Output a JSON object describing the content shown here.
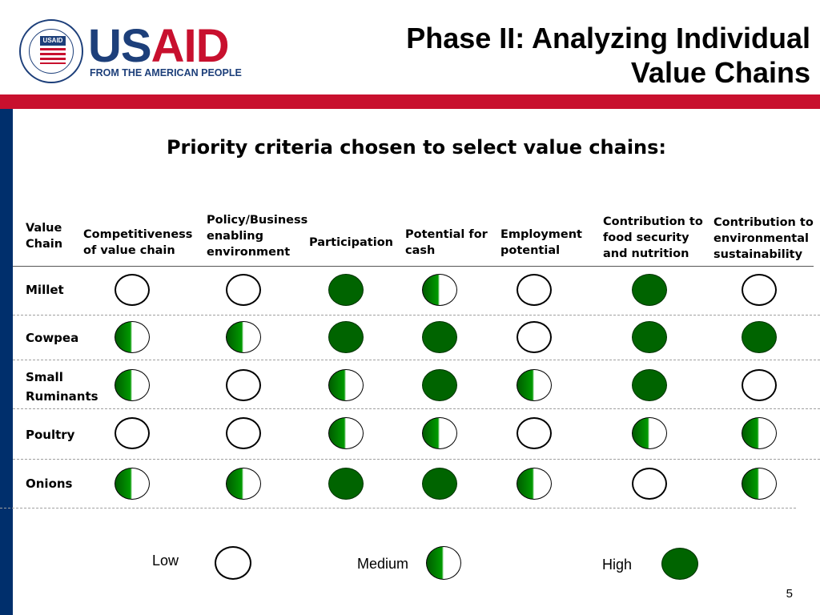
{
  "brand": {
    "seal_text": "USAID",
    "wordmark_us": "US",
    "wordmark_aid": "AID",
    "tagline": "FROM THE AMERICAN PEOPLE",
    "blue": "#1d3f7a",
    "red": "#c8102e"
  },
  "slide": {
    "title_line1": "Phase II: Analyzing Individual",
    "title_line2": "Value Chains",
    "subtitle": "Priority criteria chosen to select value chains:",
    "page_number": "5"
  },
  "table": {
    "headers": [
      "Value\nChain",
      "Competitiveness\nof value chain",
      "Policy/Business\nenabling\nenvironment",
      "Participation",
      "Potential for\ncash",
      "Employment\npotential",
      "Contribution to\nfood security\nand nutrition",
      "Contribution to\nenvironmental\nsustainability"
    ],
    "rows": [
      {
        "label": "Millet",
        "ratings": [
          "low",
          "low",
          "high",
          "medium",
          "low",
          "high",
          "low"
        ]
      },
      {
        "label": "Cowpea",
        "ratings": [
          "medium",
          "medium",
          "high",
          "high",
          "low",
          "high",
          "high"
        ]
      },
      {
        "label": "Small\nRuminants",
        "ratings": [
          "medium",
          "low",
          "medium",
          "high",
          "medium",
          "high",
          "low"
        ]
      },
      {
        "label": "Poultry",
        "ratings": [
          "low",
          "low",
          "medium",
          "medium",
          "low",
          "medium",
          "medium"
        ]
      },
      {
        "label": "Onions",
        "ratings": [
          "medium",
          "medium",
          "high",
          "high",
          "medium",
          "low",
          "medium"
        ]
      }
    ]
  },
  "legend": {
    "low_label": "Low",
    "medium_label": "Medium",
    "high_label": "High"
  },
  "colors": {
    "high_fill": "#006400",
    "medium_fill": "#009a00",
    "accent_bar": "#c8102e",
    "side_bar": "#002f6c"
  }
}
